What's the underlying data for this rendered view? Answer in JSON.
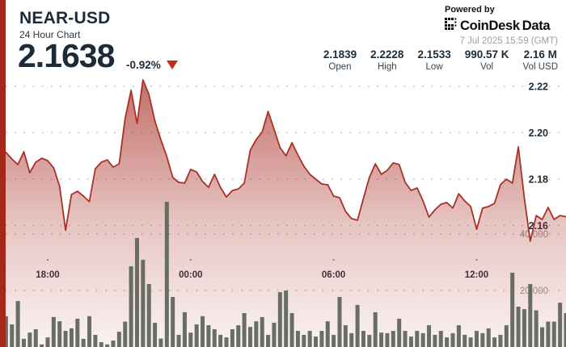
{
  "header": {
    "symbol": "NEAR-USD",
    "subtitle": "24 Hour Chart",
    "price": "2.1638",
    "change": "-0.92%",
    "powered_by": "Powered by",
    "brand": "CoinDesk",
    "brand_suffix": "Data",
    "timestamp": "7 Jul 2025 15:59 (GMT)"
  },
  "stats": [
    {
      "value": "2.1839",
      "label": "Open"
    },
    {
      "value": "2.2228",
      "label": "High"
    },
    {
      "value": "2.1533",
      "label": "Low"
    },
    {
      "value": "990.57 K",
      "label": "Vol"
    },
    {
      "value": "2.16 M",
      "label": "Vol USD"
    }
  ],
  "colors": {
    "accent_stripe": "#a5291b",
    "line_red": "#a93127",
    "triangle_red": "#c22c18",
    "navy_text": "#1d2b39",
    "muted_gray": "#9b9691",
    "volume_bar": "#60675d",
    "background": "#ffffff"
  },
  "chart_data": {
    "type": "area",
    "title": "NEAR-USD 24 Hour Chart",
    "interval_minutes": 15,
    "legend": "none",
    "grid": "dotted-horizontal",
    "price_axis": {
      "ticks": [
        2.16,
        2.18,
        2.2,
        2.22
      ],
      "min": 2.149,
      "max": 2.2238,
      "side": "right"
    },
    "volume_axis": {
      "ticks": [
        20000,
        40000
      ],
      "max": 52000,
      "side": "right"
    },
    "x_ticks": [
      {
        "label": "18:00",
        "index": 8
      },
      {
        "label": "00:00",
        "index": 32
      },
      {
        "label": "06:00",
        "index": 56
      },
      {
        "label": "12:00",
        "index": 80
      }
    ],
    "price": [
      2.1911,
      2.1915,
      2.1887,
      2.1863,
      2.1918,
      2.1828,
      2.1873,
      2.189,
      2.188,
      2.1849,
      2.177,
      2.158,
      2.1734,
      2.1748,
      2.1727,
      2.1703,
      2.1845,
      2.1873,
      2.1883,
      2.1852,
      2.1866,
      2.2061,
      2.2183,
      2.204,
      2.2228,
      2.2165,
      2.205,
      2.197,
      2.1897,
      2.1807,
      2.1786,
      2.1783,
      2.1842,
      2.1831,
      2.179,
      2.1765,
      2.1821,
      2.1765,
      2.1723,
      2.1751,
      2.1758,
      2.1783,
      2.1925,
      2.197,
      2.2003,
      2.2092,
      2.2016,
      2.1936,
      2.1901,
      2.1957,
      2.1904,
      2.1856,
      2.1821,
      2.18,
      2.1779,
      2.1776,
      2.1727,
      2.172,
      2.1661,
      2.163,
      2.1623,
      2.1717,
      2.1807,
      2.1866,
      2.1821,
      2.1838,
      2.187,
      2.1863,
      2.1786,
      2.1751,
      2.1762,
      2.1706,
      2.1636,
      2.1668,
      2.1692,
      2.1699,
      2.1675,
      2.1737,
      2.1706,
      2.1682,
      2.1584,
      2.1675,
      2.1682,
      2.1696,
      2.1776,
      2.18,
      2.1783,
      2.1939,
      2.172,
      2.1533,
      2.1643,
      2.1626,
      2.1678,
      2.1626,
      2.1643,
      2.1638
    ],
    "volume": [
      7000,
      10900,
      8000,
      16300,
      2900,
      5100,
      6300,
      900,
      3400,
      10600,
      9100,
      5700,
      6600,
      10000,
      2900,
      10900,
      4300,
      1700,
      900,
      2300,
      5400,
      9000,
      28600,
      38600,
      30900,
      22300,
      8600,
      3000,
      51400,
      17700,
      4300,
      12300,
      5100,
      8000,
      10900,
      7700,
      6300,
      4300,
      3400,
      6300,
      7700,
      12000,
      7100,
      9100,
      10600,
      4300,
      8600,
      19400,
      20000,
      12000,
      5700,
      4300,
      5700,
      3700,
      5700,
      9100,
      4300,
      17700,
      7700,
      4900,
      14900,
      5700,
      4300,
      12300,
      5100,
      4900,
      5700,
      10000,
      5700,
      3700,
      5700,
      4900,
      7700,
      4300,
      5700,
      3400,
      4900,
      7700,
      4300,
      3400,
      5700,
      4900,
      6600,
      3400,
      4300,
      7700,
      26300,
      14300,
      13400,
      22300,
      13000,
      7000,
      9000,
      9000,
      15700,
      12000
    ]
  }
}
